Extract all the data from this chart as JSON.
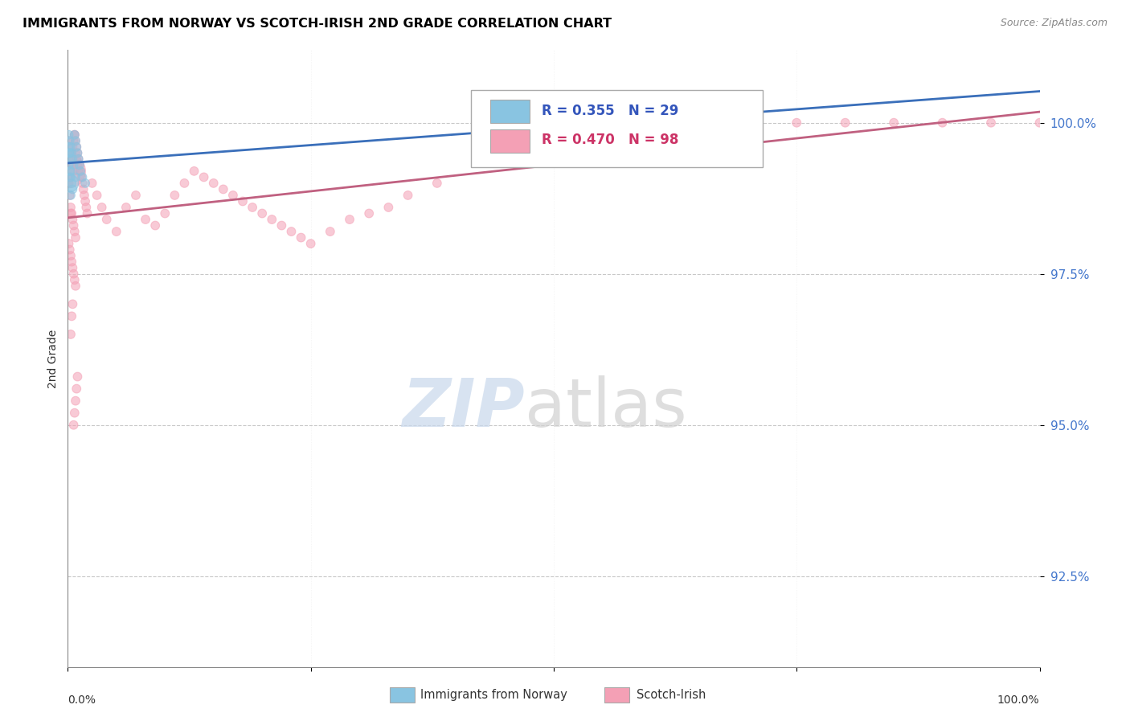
{
  "title": "IMMIGRANTS FROM NORWAY VS SCOTCH-IRISH 2ND GRADE CORRELATION CHART",
  "source_text": "Source: ZipAtlas.com",
  "ylabel": "2nd Grade",
  "norway_color": "#89c4e1",
  "scotch_color": "#f4a0b5",
  "norway_line_color": "#3a6fba",
  "scotch_line_color": "#c06080",
  "norway_R": 0.355,
  "norway_N": 29,
  "scotch_R": 0.47,
  "scotch_N": 98,
  "watermark_zip": "ZIP",
  "watermark_atlas": "atlas",
  "legend_label1": "Immigrants from Norway",
  "legend_label2": "Scotch-Irish",
  "yticks": [
    92.5,
    95.0,
    97.5,
    100.0
  ],
  "ylim": [
    91.0,
    101.2
  ],
  "xlim": [
    0.0,
    1.0
  ],
  "norway_x": [
    0.001,
    0.002,
    0.003,
    0.004,
    0.005,
    0.006,
    0.007,
    0.008,
    0.009,
    0.01,
    0.011,
    0.012,
    0.013,
    0.001,
    0.002,
    0.003,
    0.001,
    0.015,
    0.002,
    0.018,
    0.003,
    0.004,
    0.005,
    0.003,
    0.008,
    0.002,
    0.003,
    0.55,
    0.001
  ],
  "norway_y": [
    99.8,
    99.7,
    99.6,
    99.5,
    99.4,
    99.3,
    99.8,
    99.7,
    99.6,
    99.5,
    99.4,
    99.3,
    99.2,
    99.6,
    99.5,
    99.4,
    99.3,
    99.1,
    99.2,
    99.0,
    99.1,
    99.0,
    98.9,
    99.2,
    99.1,
    99.0,
    98.8,
    100.0,
    99.5
  ],
  "norway_size": [
    60,
    60,
    60,
    60,
    60,
    60,
    60,
    60,
    60,
    60,
    60,
    60,
    60,
    60,
    60,
    60,
    60,
    60,
    60,
    60,
    60,
    60,
    60,
    60,
    60,
    250,
    60,
    60,
    60
  ],
  "scotch_x": [
    0.001,
    0.002,
    0.003,
    0.004,
    0.005,
    0.006,
    0.007,
    0.008,
    0.009,
    0.01,
    0.011,
    0.012,
    0.013,
    0.014,
    0.015,
    0.016,
    0.017,
    0.018,
    0.019,
    0.02,
    0.001,
    0.002,
    0.003,
    0.004,
    0.005,
    0.006,
    0.007,
    0.008,
    0.001,
    0.002,
    0.025,
    0.03,
    0.035,
    0.04,
    0.05,
    0.06,
    0.07,
    0.08,
    0.09,
    0.1,
    0.11,
    0.12,
    0.13,
    0.14,
    0.15,
    0.16,
    0.17,
    0.18,
    0.19,
    0.2,
    0.21,
    0.22,
    0.23,
    0.24,
    0.25,
    0.27,
    0.29,
    0.31,
    0.33,
    0.35,
    0.38,
    0.001,
    0.002,
    0.003,
    0.004,
    0.005,
    0.006,
    0.007,
    0.008,
    0.003,
    0.55,
    0.6,
    0.65,
    0.7,
    0.75,
    0.8,
    0.85,
    0.9,
    0.95,
    1.0,
    0.002,
    0.003,
    0.004,
    0.005,
    0.006,
    0.007,
    0.008,
    0.009,
    0.01,
    0.011,
    0.003,
    0.004,
    0.005,
    0.006,
    0.007,
    0.008,
    0.009,
    0.01
  ],
  "scotch_y": [
    99.7,
    99.6,
    99.5,
    99.4,
    99.3,
    99.2,
    99.8,
    99.7,
    99.6,
    99.5,
    99.4,
    99.3,
    99.2,
    99.1,
    99.0,
    98.9,
    98.8,
    98.7,
    98.6,
    98.5,
    99.0,
    98.8,
    98.6,
    98.5,
    98.4,
    98.3,
    98.2,
    98.1,
    99.2,
    99.1,
    99.0,
    98.8,
    98.6,
    98.4,
    98.2,
    98.6,
    98.8,
    98.4,
    98.3,
    98.5,
    98.8,
    99.0,
    99.2,
    99.1,
    99.0,
    98.9,
    98.8,
    98.7,
    98.6,
    98.5,
    98.4,
    98.3,
    98.2,
    98.1,
    98.0,
    98.2,
    98.4,
    98.5,
    98.6,
    98.8,
    99.0,
    98.0,
    97.9,
    97.8,
    97.7,
    97.6,
    97.5,
    97.4,
    97.3,
    98.5,
    100.0,
    100.0,
    100.0,
    100.0,
    100.0,
    100.0,
    100.0,
    100.0,
    100.0,
    100.0,
    99.3,
    99.4,
    99.5,
    99.6,
    99.7,
    99.8,
    99.5,
    99.4,
    99.3,
    99.2,
    96.5,
    96.8,
    97.0,
    95.0,
    95.2,
    95.4,
    95.6,
    95.8
  ],
  "scotch_size": [
    60,
    60,
    60,
    60,
    60,
    60,
    60,
    60,
    60,
    60,
    60,
    60,
    60,
    60,
    60,
    60,
    60,
    60,
    60,
    60,
    60,
    60,
    60,
    60,
    60,
    60,
    60,
    60,
    900,
    60,
    60,
    60,
    60,
    60,
    60,
    60,
    60,
    60,
    60,
    60,
    60,
    60,
    60,
    60,
    60,
    60,
    60,
    60,
    60,
    60,
    60,
    60,
    60,
    60,
    60,
    60,
    60,
    60,
    60,
    60,
    60,
    60,
    60,
    60,
    60,
    60,
    60,
    60,
    60,
    60,
    60,
    60,
    60,
    60,
    60,
    60,
    60,
    60,
    60,
    60,
    60,
    60,
    60,
    60,
    60,
    60,
    60,
    60,
    60,
    60,
    60,
    60,
    60,
    60,
    60,
    60,
    60,
    60
  ]
}
